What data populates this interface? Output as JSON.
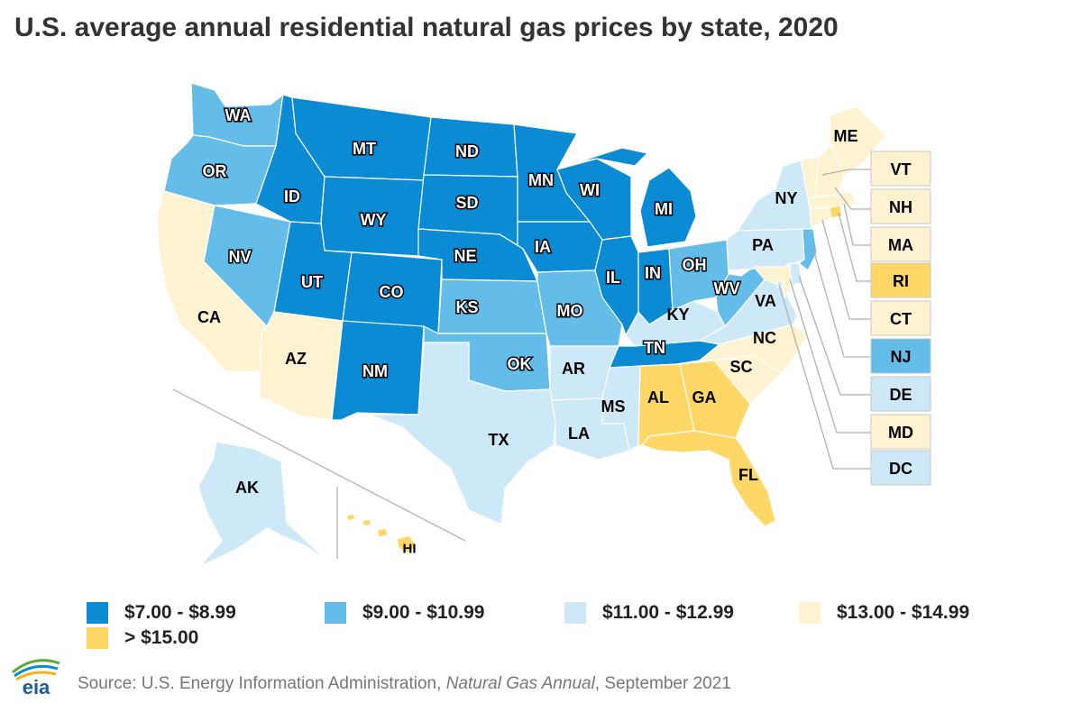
{
  "title": "U.S. average annual residential natural gas prices by state, 2020",
  "legend": {
    "b1": {
      "label": "$7.00 - $8.99",
      "color": "#0a8bd4"
    },
    "b2": {
      "label": "$9.00 - $10.99",
      "color": "#64bde9"
    },
    "b3": {
      "label": "$11.00 - $12.99",
      "color": "#cde9f7"
    },
    "b4": {
      "label": "$13.00 - $14.99",
      "color": "#fef3d1"
    },
    "b5": {
      "label": "> $15.00",
      "color": "#fed766"
    }
  },
  "states": {
    "WA": {
      "label": "WA",
      "bin": "b2"
    },
    "OR": {
      "label": "OR",
      "bin": "b2"
    },
    "CA": {
      "label": "CA",
      "bin": "b4"
    },
    "NV": {
      "label": "NV",
      "bin": "b2"
    },
    "ID": {
      "label": "ID",
      "bin": "b1"
    },
    "MT": {
      "label": "MT",
      "bin": "b1"
    },
    "WY": {
      "label": "WY",
      "bin": "b1"
    },
    "UT": {
      "label": "UT",
      "bin": "b1"
    },
    "AZ": {
      "label": "AZ",
      "bin": "b4"
    },
    "CO": {
      "label": "CO",
      "bin": "b1"
    },
    "NM": {
      "label": "NM",
      "bin": "b1"
    },
    "ND": {
      "label": "ND",
      "bin": "b1"
    },
    "SD": {
      "label": "SD",
      "bin": "b1"
    },
    "NE": {
      "label": "NE",
      "bin": "b1"
    },
    "KS": {
      "label": "KS",
      "bin": "b2"
    },
    "OK": {
      "label": "OK",
      "bin": "b2"
    },
    "TX": {
      "label": "TX",
      "bin": "b3"
    },
    "MN": {
      "label": "MN",
      "bin": "b1"
    },
    "IA": {
      "label": "IA",
      "bin": "b1"
    },
    "MO": {
      "label": "MO",
      "bin": "b2"
    },
    "AR": {
      "label": "AR",
      "bin": "b3"
    },
    "LA": {
      "label": "LA",
      "bin": "b3"
    },
    "WI": {
      "label": "WI",
      "bin": "b1"
    },
    "IL": {
      "label": "IL",
      "bin": "b1"
    },
    "MI": {
      "label": "MI",
      "bin": "b1"
    },
    "IN": {
      "label": "IN",
      "bin": "b1"
    },
    "OH": {
      "label": "OH",
      "bin": "b2"
    },
    "KY": {
      "label": "KY",
      "bin": "b3"
    },
    "TN": {
      "label": "TN",
      "bin": "b1"
    },
    "MS": {
      "label": "MS",
      "bin": "b3"
    },
    "AL": {
      "label": "AL",
      "bin": "b5"
    },
    "GA": {
      "label": "GA",
      "bin": "b5"
    },
    "FL": {
      "label": "FL",
      "bin": "b5"
    },
    "SC": {
      "label": "SC",
      "bin": "b4"
    },
    "NC": {
      "label": "NC",
      "bin": "b4"
    },
    "VA": {
      "label": "VA",
      "bin": "b3"
    },
    "WV": {
      "label": "WV",
      "bin": "b2"
    },
    "PA": {
      "label": "PA",
      "bin": "b3"
    },
    "NY": {
      "label": "NY",
      "bin": "b3"
    },
    "ME": {
      "label": "ME",
      "bin": "b4"
    },
    "VT": {
      "label": "VT",
      "bin": "b4"
    },
    "NH": {
      "label": "NH",
      "bin": "b4"
    },
    "MA": {
      "label": "MA",
      "bin": "b4"
    },
    "RI": {
      "label": "RI",
      "bin": "b5"
    },
    "CT": {
      "label": "CT",
      "bin": "b4"
    },
    "NJ": {
      "label": "NJ",
      "bin": "b2"
    },
    "DE": {
      "label": "DE",
      "bin": "b3"
    },
    "MD": {
      "label": "MD",
      "bin": "b4"
    },
    "DC": {
      "label": "DC",
      "bin": "b3"
    },
    "AK": {
      "label": "AK",
      "bin": "b3"
    },
    "HI": {
      "label": "HI",
      "bin": "b5"
    }
  },
  "source": {
    "prefix": "Source: U.S. Energy Information Administration, ",
    "publication": "Natural Gas Annual",
    "suffix": ", September 2021"
  },
  "logo": {
    "text": "eia"
  }
}
